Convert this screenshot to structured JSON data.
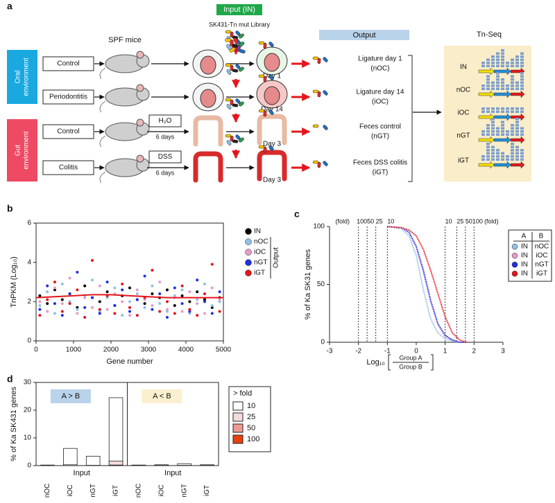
{
  "panel_a": {
    "label": "a",
    "input_label": "Input (IN)",
    "library": "SK431-Tn mut Library",
    "output_label": "Output",
    "mice_label": "SPF mice",
    "tnseq_label": "Tn-Seq",
    "environments": [
      [
        "Oral",
        "environment"
      ],
      [
        "Gut",
        "environment"
      ]
    ],
    "conditions": [
      "Control",
      "Periodontitis",
      "Control",
      "Colitis"
    ],
    "treatments": [
      {
        "name": "H₂O",
        "duration": "6 days"
      },
      {
        "name": "DSS",
        "duration": "6 days"
      }
    ],
    "days": [
      "Day 1",
      "Day 14",
      "Day 3",
      "Day 3"
    ],
    "outputs": [
      [
        "Ligature day 1",
        "(nOC)"
      ],
      [
        "Ligature day 14",
        "(iOC)"
      ],
      [
        "Feces control",
        "(nGT)"
      ],
      [
        "Feces DSS colitis",
        "(iGT)"
      ]
    ],
    "tnseq_rows": [
      "IN",
      "nOC",
      "iOC",
      "nGT",
      "iGT"
    ]
  },
  "chart_data": [
    {
      "type": "scatter",
      "label": "b",
      "ylabel": "TnPKM (Log₁₀)",
      "xlabel": "Gene number",
      "xlim": [
        0,
        5000
      ],
      "xticks": [
        0,
        1000,
        2000,
        3000,
        4000,
        5000
      ],
      "ylim": [
        0,
        6
      ],
      "yticks": [
        0,
        2,
        4,
        6
      ],
      "legend_group": "Output",
      "x": [
        100,
        300,
        500,
        700,
        900,
        1100,
        1300,
        1500,
        1700,
        1900,
        2100,
        2300,
        2500,
        2700,
        2900,
        3100,
        3300,
        3500,
        3700,
        3900,
        4100,
        4300,
        4500,
        4700,
        4900
      ],
      "series": [
        {
          "name": "IN",
          "color": "#000000",
          "values": [
            2.3,
            1.9,
            2.6,
            2.1,
            2.4,
            1.7,
            2.8,
            2.2,
            2.0,
            2.5,
            1.8,
            2.3,
            2.7,
            2.1,
            1.9,
            2.4,
            2.2,
            2.6,
            1.8,
            2.3,
            2.0,
            2.5,
            2.1,
            1.7,
            2.2
          ]
        },
        {
          "name": "nOC",
          "color": "#8fc1e3",
          "values": [
            1.8,
            2.5,
            1.4,
            2.9,
            2.0,
            1.6,
            2.3,
            3.1,
            1.5,
            2.2,
            2.7,
            1.3,
            2.0,
            2.4,
            1.7,
            2.8,
            1.9,
            1.5,
            2.3,
            2.6,
            1.4,
            2.1,
            2.9,
            1.8,
            2.0
          ]
        },
        {
          "name": "iOC",
          "color": "#e79ac8",
          "values": [
            2.0,
            1.5,
            2.7,
            1.9,
            3.2,
            1.4,
            2.2,
            1.7,
            2.8,
            1.6,
            2.4,
            2.0,
            1.3,
            2.6,
            2.1,
            1.8,
            3.0,
            1.6,
            2.2,
            1.5,
            2.5,
            1.9,
            1.4,
            2.7,
            2.1
          ]
        },
        {
          "name": "nGT",
          "color": "#1f2fe0",
          "values": [
            1.6,
            2.8,
            1.9,
            1.3,
            2.4,
            3.5,
            1.7,
            2.2,
            1.4,
            3.0,
            1.8,
            2.6,
            1.5,
            2.1,
            3.3,
            1.6,
            2.4,
            1.2,
            2.7,
            1.9,
            1.5,
            3.1,
            2.0,
            1.4,
            2.5
          ]
        },
        {
          "name": "iGT",
          "color": "#e4161b",
          "values": [
            1.3,
            2.1,
            3.0,
            1.5,
            1.9,
            2.6,
            1.2,
            4.1,
            1.6,
            2.3,
            1.4,
            2.9,
            1.7,
            1.3,
            2.2,
            3.6,
            1.5,
            2.0,
            1.4,
            2.8,
            1.6,
            1.3,
            2.4,
            3.9,
            1.5
          ]
        }
      ],
      "trend": {
        "color": "#e4161b",
        "x": [
          0,
          500,
          1000,
          1500,
          2000,
          2500,
          3000,
          3500,
          4000,
          4500,
          5000
        ],
        "values": [
          2.2,
          2.25,
          2.3,
          2.35,
          2.35,
          2.3,
          2.25,
          2.2,
          2.2,
          2.2,
          2.2
        ]
      }
    },
    {
      "type": "line",
      "label": "c",
      "ylabel": "% of Ka SK31 genes",
      "xlabel": {
        "prefix": "Log₁₀",
        "numerator": "Group A",
        "denominator": "Group B"
      },
      "xlim": [
        -3,
        3
      ],
      "xticks": [
        -3,
        -2,
        -1,
        0,
        1,
        2,
        3
      ],
      "ylim": [
        0,
        100
      ],
      "yticks": [
        0,
        50,
        100
      ],
      "fold_unit": "(fold)",
      "fold_lines": [
        {
          "value": -2,
          "label": "100"
        },
        {
          "value": -1.7,
          "label": "50"
        },
        {
          "value": -1.4,
          "label": "25"
        },
        {
          "value": -1,
          "label": "10"
        },
        {
          "value": 1,
          "label": "10"
        },
        {
          "value": 1.4,
          "label": "25"
        },
        {
          "value": 1.7,
          "label": "50"
        },
        {
          "value": 2,
          "label": "100"
        }
      ],
      "legend_header": [
        "A",
        "B"
      ],
      "x": [
        -1,
        -0.5,
        -0.25,
        0,
        0.25,
        0.5,
        0.75,
        1,
        1.25,
        1.5,
        1.75
      ],
      "series": [
        {
          "name": "nOC",
          "group_a": "IN",
          "color": "#8fc1e3",
          "values": [
            100,
            98,
            92,
            75,
            45,
            20,
            8,
            3,
            1,
            0,
            0
          ]
        },
        {
          "name": "iOC",
          "group_a": "IN",
          "color": "#e79ac8",
          "values": [
            100,
            99,
            95,
            82,
            60,
            35,
            15,
            5,
            2,
            0,
            0
          ]
        },
        {
          "name": "nGT",
          "group_a": "IN",
          "color": "#1f2fe0",
          "values": [
            100,
            99,
            95,
            83,
            62,
            36,
            16,
            6,
            2,
            0,
            0
          ]
        },
        {
          "name": "iGT",
          "group_a": "IN",
          "color": "#e4161b",
          "values": [
            100,
            99,
            97,
            92,
            80,
            62,
            42,
            22,
            8,
            2,
            0
          ]
        }
      ]
    },
    {
      "type": "bar",
      "label": "d",
      "ylabel": "% of Ka SK431 genes",
      "ylim": [
        0,
        30
      ],
      "yticks": [
        0,
        10,
        20,
        30
      ],
      "stacked": false,
      "groups": [
        "A > B",
        "A < B"
      ],
      "group_colors": [
        "#b9d3ea",
        "#faefcf"
      ],
      "group_x_label": "Input",
      "categories": [
        "nOC",
        "iOC",
        "nGT",
        "iGT",
        "nOC",
        "iOC",
        "nGT",
        "iGT"
      ],
      "legend_title": "> fold",
      "series": [
        {
          "name": "10",
          "color": "#ffffff",
          "values": [
            0.2,
            6.2,
            3.4,
            24.5,
            0.2,
            0.3,
            0.7,
            0.3
          ]
        },
        {
          "name": "25",
          "color": "#f6dada",
          "values": [
            0,
            0.3,
            0.1,
            1.6,
            0,
            0.1,
            0.1,
            0.1
          ]
        },
        {
          "name": "50",
          "color": "#ee9a94",
          "values": [
            0,
            0,
            0,
            0.2,
            0,
            0,
            0,
            0
          ]
        },
        {
          "name": "100",
          "color": "#e8400c",
          "values": [
            0,
            0,
            0,
            0,
            0,
            0,
            0,
            0
          ]
        }
      ]
    }
  ]
}
